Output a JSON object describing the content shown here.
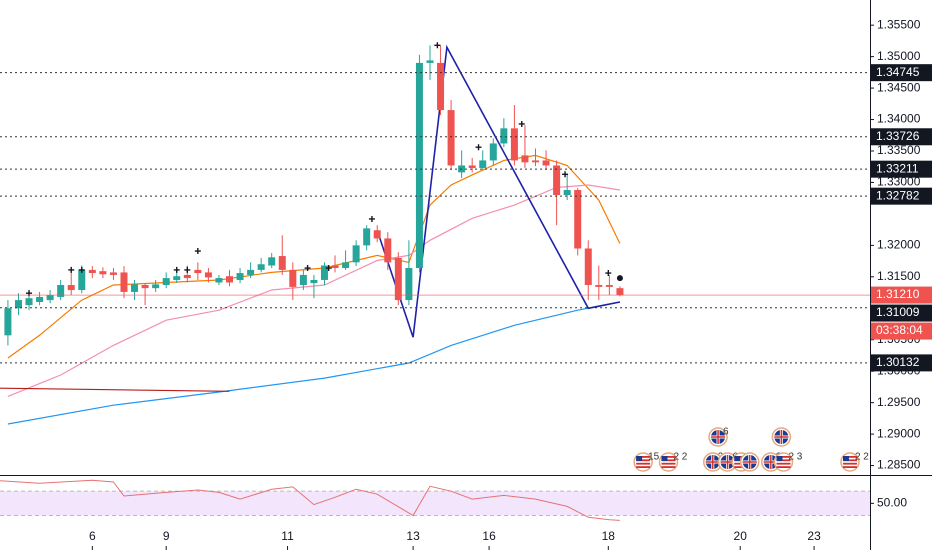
{
  "chart_data": [
    {
      "type": "candlestick",
      "up_color": "#26a69a",
      "down_color": "#ef5350",
      "open": [
        1.3057,
        1.31,
        1.3105,
        1.311,
        1.3113,
        1.3118,
        1.3137,
        1.3129,
        1.3161,
        1.3159,
        1.3157,
        1.3157,
        1.3126,
        1.3137,
        1.3132,
        1.3137,
        1.3145,
        1.3153,
        1.3161,
        1.3157,
        1.3141,
        1.3151,
        1.3145,
        1.3153,
        1.3161,
        1.3168,
        1.3183,
        1.3161,
        1.3137,
        1.314,
        1.3145,
        1.3168,
        1.3164,
        1.3173,
        1.32,
        1.3224,
        1.3211,
        1.318,
        1.3113,
        1.3164,
        1.349,
        1.349,
        1.3415,
        1.3316,
        1.3327,
        1.3323,
        1.3335,
        1.3362,
        1.3386,
        1.3343,
        1.3335,
        1.3335,
        1.3327,
        1.328,
        1.3288,
        1.3195,
        1.3137,
        1.3137,
        1.3132
      ],
      "high": [
        1.3113,
        1.3124,
        1.3129,
        1.3126,
        1.3129,
        1.3145,
        1.3157,
        1.3168,
        1.3167,
        1.3165,
        1.3164,
        1.3167,
        1.3145,
        1.314,
        1.3145,
        1.3157,
        1.3161,
        1.3168,
        1.3173,
        1.3164,
        1.3153,
        1.3161,
        1.3164,
        1.3173,
        1.318,
        1.3188,
        1.3216,
        1.3173,
        1.3161,
        1.3153,
        1.3173,
        1.3184,
        1.3192,
        1.3208,
        1.3232,
        1.3232,
        1.3221,
        1.3189,
        1.3208,
        1.3503,
        1.3518,
        1.3518,
        1.3431,
        1.3351,
        1.3339,
        1.3351,
        1.337,
        1.3402,
        1.3423,
        1.3391,
        1.3354,
        1.3351,
        1.3335,
        1.3312,
        1.3291,
        1.3208,
        1.3168,
        1.3153,
        1.3135
      ],
      "low": [
        1.3041,
        1.3089,
        1.3097,
        1.3105,
        1.3108,
        1.3113,
        1.3121,
        1.3124,
        1.3148,
        1.3148,
        1.3145,
        1.3116,
        1.3113,
        1.3105,
        1.3126,
        1.3132,
        1.314,
        1.3141,
        1.3145,
        1.3141,
        1.3137,
        1.3135,
        1.314,
        1.3148,
        1.3157,
        1.3164,
        1.3153,
        1.3113,
        1.3129,
        1.3116,
        1.3137,
        1.3157,
        1.3161,
        1.3167,
        1.3192,
        1.3205,
        1.3161,
        1.3105,
        1.3105,
        1.3157,
        1.3463,
        1.3407,
        1.332,
        1.3307,
        1.3316,
        1.332,
        1.3327,
        1.3356,
        1.3327,
        1.3323,
        1.3326,
        1.332,
        1.3232,
        1.3272,
        1.3184,
        1.3113,
        1.3113,
        1.3121,
        1.3119
      ],
      "close": [
        1.31,
        1.3113,
        1.3116,
        1.3118,
        1.3121,
        1.3137,
        1.3129,
        1.3161,
        1.3156,
        1.3154,
        1.3153,
        1.3126,
        1.3138,
        1.3132,
        1.3138,
        1.3148,
        1.3151,
        1.3148,
        1.3156,
        1.3149,
        1.3148,
        1.3141,
        1.3156,
        1.3161,
        1.317,
        1.3181,
        1.3161,
        1.3134,
        1.3153,
        1.3145,
        1.3168,
        1.3164,
        1.3173,
        1.32,
        1.3227,
        1.3211,
        1.3173,
        1.3113,
        1.3164,
        1.349,
        1.3494,
        1.3415,
        1.3327,
        1.3327,
        1.3323,
        1.3335,
        1.3362,
        1.3386,
        1.3335,
        1.3332,
        1.3332,
        1.3327,
        1.328,
        1.3288,
        1.3195,
        1.3137,
        1.3134,
        1.3134,
        1.3121
      ],
      "xlim": [
        -0.75,
        81.7
      ],
      "xticks": [
        {
          "value": 8,
          "label": "6"
        },
        {
          "value": 15,
          "label": "9"
        },
        {
          "value": 26.5,
          "label": "11"
        },
        {
          "value": 38.4,
          "label": "13"
        },
        {
          "value": 45.6,
          "label": "16"
        },
        {
          "value": 56.9,
          "label": "18"
        },
        {
          "value": 69.4,
          "label": "20"
        },
        {
          "value": 76.4,
          "label": "23"
        }
      ],
      "ylim": [
        1.2835,
        1.359
      ],
      "yticks": [
        {
          "value": 1.355,
          "label": "1.35500"
        },
        {
          "value": 1.35,
          "label": "1.35000"
        },
        {
          "value": 1.345,
          "label": "1.34500"
        },
        {
          "value": 1.34,
          "label": "1.34000"
        },
        {
          "value": 1.335,
          "label": "1.33500"
        },
        {
          "value": 1.33,
          "label": "1.33000"
        },
        {
          "value": 1.32,
          "label": "1.32000"
        },
        {
          "value": 1.315,
          "label": "1.31500"
        },
        {
          "value": 1.305,
          "label": "1.30500"
        },
        {
          "value": 1.3,
          "label": "1.30000"
        },
        {
          "value": 1.295,
          "label": "1.29500"
        },
        {
          "value": 1.29,
          "label": "1.29000"
        },
        {
          "value": 1.285,
          "label": "1.28500"
        }
      ],
      "overlays": [
        {
          "color": "#f57c00",
          "x": [
            0,
            3,
            7,
            10,
            15,
            20,
            25,
            30,
            35,
            38,
            40,
            42,
            44,
            47,
            50,
            53,
            56,
            58
          ],
          "values": [
            1.3021,
            1.3057,
            1.3113,
            1.3137,
            1.3141,
            1.3145,
            1.3157,
            1.3164,
            1.3184,
            1.3173,
            1.3264,
            1.3296,
            1.3312,
            1.3335,
            1.3343,
            1.3327,
            1.3272,
            1.3203
          ]
        },
        {
          "color": "#f48fb1",
          "x": [
            0,
            5,
            10,
            15,
            20,
            25,
            30,
            35,
            38,
            40,
            44,
            48,
            52,
            55,
            58
          ],
          "values": [
            1.296,
            1.2994,
            1.3041,
            1.3081,
            1.3097,
            1.3129,
            1.3137,
            1.3176,
            1.3184,
            1.3208,
            1.3243,
            1.3264,
            1.3292,
            1.3296,
            1.3288
          ]
        },
        {
          "color": "#2196f3",
          "x": [
            0,
            10,
            20,
            30,
            38,
            42,
            48,
            54,
            58
          ],
          "values": [
            1.2916,
            1.2946,
            1.2967,
            1.2989,
            1.3013,
            1.3041,
            1.3073,
            1.3097,
            1.311
          ]
        },
        {
          "color": "#b71c1c",
          "x": [
            -0.75,
            21
          ],
          "values": [
            1.2973,
            1.2968
          ]
        },
        {
          "color": "#1e22aa",
          "x": [
            35,
            38.4,
            41.6,
            55,
            58
          ],
          "values": [
            1.3224,
            1.3054,
            1.3515,
            1.31,
            1.311
          ]
        }
      ],
      "levels": [
        1.34745,
        1.33726,
        1.33211,
        1.32782,
        1.31009,
        1.30132
      ],
      "last_price": {
        "value": 1.3121,
        "label": "1.31210"
      },
      "countdown": "03:38:04",
      "markers": {
        "x": [
          2,
          6,
          7,
          16,
          17,
          18,
          28.4,
          30.4,
          34.5,
          40.7,
          44.6,
          48.7,
          52.8,
          56.9
        ],
        "values": [
          1.3124,
          1.3161,
          1.3161,
          1.3161,
          1.3161,
          1.3191,
          1.3164,
          1.3164,
          1.3242,
          1.3518,
          1.3356,
          1.3393,
          1.3313,
          1.3156
        ]
      },
      "dot": {
        "x": 58,
        "value": 1.3148
      },
      "events": [
        {
          "x": 60.2,
          "flag": "us",
          "label": "15"
        },
        {
          "x": 62.6,
          "flag": "us",
          "label": "2 2"
        },
        {
          "x": 66.8,
          "flag": "uk",
          "label": "2"
        },
        {
          "x": 68.2,
          "flag": "uk",
          "label": "6"
        },
        {
          "x": 69.5,
          "flag": "us",
          "label": "3"
        },
        {
          "x": 67.3,
          "flag": "uk",
          "label": "6"
        },
        {
          "x": 70.3,
          "flag": "uk"
        },
        {
          "x": 72.3,
          "flag": "uk",
          "label": "3"
        },
        {
          "x": 73.5,
          "flag": "us",
          "label": "2 3"
        },
        {
          "x": 73.3,
          "flag": "uk"
        },
        {
          "x": 79.8,
          "flag": "us",
          "label": "2 2"
        }
      ]
    },
    {
      "type": "line",
      "color": "#e57373",
      "band": [
        30,
        70
      ],
      "band_color": "#f3e5fc",
      "x": [
        -0.75,
        3,
        8,
        10,
        11,
        15,
        18,
        20,
        22,
        25,
        27,
        29,
        31,
        33,
        35,
        38.4,
        40,
        42,
        44,
        47,
        50,
        53,
        55,
        57,
        58
      ],
      "values": [
        87,
        83,
        88,
        85,
        62,
        68,
        72,
        68,
        57,
        73,
        77,
        48,
        60,
        73,
        65,
        30,
        78,
        70,
        57,
        63,
        57,
        45,
        27,
        23,
        22
      ],
      "xlim": [
        -0.75,
        81.7
      ],
      "ylim": [
        -26.7,
        93.3
      ],
      "yticks": [
        {
          "value": 50,
          "label": "50.00"
        }
      ]
    }
  ]
}
